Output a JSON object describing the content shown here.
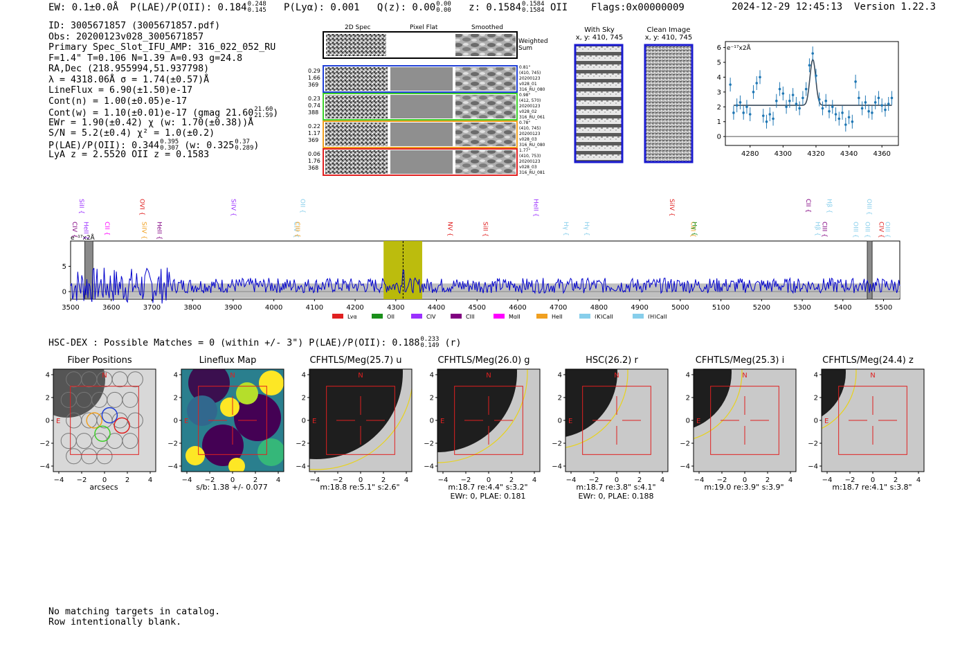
{
  "header": {
    "ew_text": "EW: 0.1±0.0Å",
    "plae_label": "P(LAE)/P(OII): 0.184",
    "plae_hi": "0.248",
    "plae_lo": "0.145",
    "plya": "P(Lyα): 0.001",
    "qz_label": "Q(z): 0.00",
    "qz_hi": "0.00",
    "qz_lo": "0.00",
    "z_label": "z: 0.1584",
    "z_hi": "0.1584",
    "z_lo": "0.1584",
    "z_line": "OII",
    "flags": "Flags:0x00000009",
    "datetime": "2024-12-29 12:45:13",
    "version": "Version 1.22.3"
  },
  "info": {
    "id": "ID: 3005671857 (3005671857.pdf)",
    "obs": "Obs: 20200123v028_3005671857",
    "primary": "Primary Spec_Slot_IFU_AMP: 316_022_052_RU",
    "fit": "F=1.4\"  T=0.106  N=1.39  A=0.93  g=24.8",
    "radec": "RA,Dec (218.955994,51.937798)",
    "lambda": "λ = 4318.06Å   σ = 1.74(±0.57)Å",
    "lineflux": "LineFlux = 6.90(±1.50)e-17",
    "cont_n": "Cont(n) = 1.00(±0.05)e-17",
    "cont_w": "Cont(w) = 1.10(±0.01)e-17 (gmag 21.60",
    "cont_w_hi": "21.60",
    "cont_w_lo": "21.59",
    "cont_w_end": ")",
    "ewr": "EWr = 1.90(±0.42)  χ (w: 1.70(±0.38))Å",
    "sn": "S/N = 5.2(±0.4)  χ² = 1.0(±0.2)",
    "plae2": "P(LAE)/P(OII): 0.344",
    "plae2_hi": "0.395",
    "plae2_lo": "0.307",
    "plae2_w": "(w: 0.325",
    "plae2_w_hi": "0.37",
    "plae2_w_lo": "0.289",
    "plae2_end": ")",
    "lya_z": "LyA z = 2.5520   OII z = 0.1583"
  },
  "spec2d": {
    "col_headers": [
      "2D Spec",
      "Pixel Flat",
      "Smoothed"
    ],
    "weighted_sum": "Weighted Sum",
    "rows": [
      {
        "left": [
          "0.29",
          "1.66",
          "369"
        ],
        "right": [
          "0.81\"",
          "(410, 745)",
          "20200123",
          "v028_01",
          "316_RU_080"
        ],
        "color": "#1f3fd6"
      },
      {
        "left": [
          "0.23",
          "0.74",
          "388"
        ],
        "right": [
          "0.98\"",
          "(412, 570)",
          "20200123",
          "v028_02",
          "316_RU_061"
        ],
        "color": "#3ecf2a"
      },
      {
        "left": [
          "0.22",
          "1.17",
          "369"
        ],
        "right": [
          "0.78\"",
          "(410, 745)",
          "20200123",
          "v028_03",
          "316_RU_080"
        ],
        "color": "#f0a020"
      },
      {
        "left": [
          "0.06",
          "1.76",
          "368"
        ],
        "right": [
          "1.77\"",
          "(410, 753)",
          "20200123",
          "v028_03",
          "316_RU_081"
        ],
        "color": "#e02020"
      }
    ]
  },
  "cutouts": {
    "with_sky_title": "With Sky",
    "with_sky_xy": "x, y: 410, 745",
    "clean_title": "Clean Image",
    "clean_xy": "x, y: 410, 745"
  },
  "chart_data": [
    {
      "type": "scatter",
      "title": "Line fit zoom",
      "ylabel_text": "e⁻¹⁷x2Å",
      "xlim": [
        4265,
        4370
      ],
      "ylim": [
        -0.6,
        6.4
      ],
      "xticks": [
        4280,
        4300,
        4320,
        4340,
        4360
      ],
      "yticks": [
        0,
        1,
        2,
        3,
        4,
        5,
        6
      ],
      "points": [
        [
          4268,
          3.5
        ],
        [
          4270,
          1.6
        ],
        [
          4272,
          2.1
        ],
        [
          4274,
          2.3
        ],
        [
          4276,
          1.6
        ],
        [
          4278,
          2.0
        ],
        [
          4280,
          1.5
        ],
        [
          4282,
          3.0
        ],
        [
          4284,
          3.6
        ],
        [
          4286,
          4.0
        ],
        [
          4288,
          1.4
        ],
        [
          4290,
          1.0
        ],
        [
          4292,
          1.5
        ],
        [
          4294,
          1.2
        ],
        [
          4296,
          2.4
        ],
        [
          4298,
          3.2
        ],
        [
          4300,
          2.9
        ],
        [
          4302,
          2.0
        ],
        [
          4304,
          2.4
        ],
        [
          4306,
          2.8
        ],
        [
          4308,
          2.2
        ],
        [
          4310,
          1.9
        ],
        [
          4312,
          2.6
        ],
        [
          4314,
          3.2
        ],
        [
          4316,
          4.8
        ],
        [
          4318,
          5.6
        ],
        [
          4320,
          4.1
        ],
        [
          4322,
          2.5
        ],
        [
          4324,
          1.9
        ],
        [
          4326,
          2.4
        ],
        [
          4328,
          1.7
        ],
        [
          4330,
          2.0
        ],
        [
          4332,
          1.5
        ],
        [
          4334,
          1.2
        ],
        [
          4336,
          1.6
        ],
        [
          4338,
          0.8
        ],
        [
          4340,
          1.3
        ],
        [
          4342,
          1.0
        ],
        [
          4344,
          3.7
        ],
        [
          4346,
          2.6
        ],
        [
          4348,
          1.9
        ],
        [
          4350,
          2.3
        ],
        [
          4352,
          1.7
        ],
        [
          4354,
          1.6
        ],
        [
          4356,
          2.3
        ],
        [
          4358,
          2.6
        ],
        [
          4360,
          2.1
        ],
        [
          4362,
          1.8
        ],
        [
          4364,
          2.2
        ],
        [
          4366,
          2.6
        ]
      ],
      "fit_continuum": 2.1,
      "fit_peak": 5.2,
      "fit_center": 4318.06,
      "fit_sigma": 1.74
    },
    {
      "type": "line",
      "title": "Full spectrum",
      "ylabel_text": "e⁻¹⁷x2Å",
      "xlim": [
        3500,
        5540
      ],
      "ylim": [
        -1.5,
        10
      ],
      "xticks": [
        3500,
        3600,
        3700,
        3800,
        3900,
        4000,
        4100,
        4200,
        4300,
        4400,
        4500,
        4600,
        4700,
        4800,
        4900,
        5000,
        5100,
        5200,
        5300,
        5400,
        5500
      ],
      "yticks": [
        0,
        5
      ],
      "highlight_x": [
        4270,
        4365
      ],
      "center_x": 4318,
      "bad_regions": [
        [
          3535,
          3555
        ],
        [
          5460,
          5472
        ]
      ],
      "line_markers": [
        {
          "x": 3505,
          "label": "CIV",
          "color": "#800080"
        },
        {
          "x": 3522,
          "label": "SiII",
          "color": "#9b30ff"
        },
        {
          "x": 3533,
          "label": "HeII",
          "color": "#9b30ff"
        },
        {
          "x": 3585,
          "label": "CII",
          "color": "#ff00ff"
        },
        {
          "x": 3671,
          "label": "OVI",
          "color": "#e02020"
        },
        {
          "x": 3676,
          "label": "SiIV",
          "color": "#f0a020"
        },
        {
          "x": 3714,
          "label": "HeII",
          "color": "#800080"
        },
        {
          "x": 3896,
          "label": "SiIV",
          "color": "#9b30ff"
        },
        {
          "x": 4050,
          "label": "CIV",
          "color": "#87ceeb"
        },
        {
          "x": 4053,
          "label": "CIII",
          "color": "#f0a020"
        },
        {
          "x": 4066,
          "label": "OII",
          "color": "#87ceeb"
        },
        {
          "x": 4429,
          "label": "NV",
          "color": "#e02020"
        },
        {
          "x": 4516,
          "label": "SiII",
          "color": "#e02020"
        },
        {
          "x": 4640,
          "label": "HeII",
          "color": "#9b30ff"
        },
        {
          "x": 4714,
          "label": "Hγ",
          "color": "#87ceeb"
        },
        {
          "x": 4765,
          "label": "Hγ",
          "color": "#87ceeb"
        },
        {
          "x": 4975,
          "label": "SiIV",
          "color": "#e02020"
        },
        {
          "x": 5027,
          "label": "CIII",
          "color": "#f0a020"
        },
        {
          "x": 5030,
          "label": "Hγ",
          "color": "#1a8f1a"
        },
        {
          "x": 5310,
          "label": "CII",
          "color": "#800080"
        },
        {
          "x": 5333,
          "label": "Hβ",
          "color": "#87ceeb"
        },
        {
          "x": 5350,
          "label": "CIII",
          "color": "#800080"
        },
        {
          "x": 5362,
          "label": "Hβ",
          "color": "#87ceeb"
        },
        {
          "x": 5427,
          "label": "OIII",
          "color": "#87ceeb"
        },
        {
          "x": 5456,
          "label": "OIII",
          "color": "#87ceeb"
        },
        {
          "x": 5460,
          "label": "OIII",
          "color": "#87ceeb"
        },
        {
          "x": 5490,
          "label": "CIV",
          "color": "#e02020"
        },
        {
          "x": 5505,
          "label": "OIII",
          "color": "#87ceeb"
        }
      ],
      "legend": [
        {
          "label": "Lyα",
          "color": "#e02020"
        },
        {
          "label": "OII",
          "color": "#1a8f1a"
        },
        {
          "label": "CIV",
          "color": "#9b30ff"
        },
        {
          "label": "CIII",
          "color": "#800080"
        },
        {
          "label": "MgII",
          "color": "#ff00ff"
        },
        {
          "label": "HeII",
          "color": "#f0a020"
        },
        {
          "label": "(K)CaII",
          "color": "#87ceeb"
        },
        {
          "label": "(H)CaII",
          "color": "#87ceeb"
        }
      ]
    }
  ],
  "hsc": {
    "summary": "HSC-DEX : Possible Matches = 0 (within +/- 3\")  P(LAE)/P(OII): 0.188",
    "summary_hi": "0.233",
    "summary_lo": "0.149",
    "summary_end": "(r)"
  },
  "panels": [
    {
      "title": "Fiber Positions",
      "caption1": "arcsecs",
      "caption2": "",
      "kind": "fiber"
    },
    {
      "title": "Lineflux Map",
      "caption1": "s/b: 1.38 +/- 0.077",
      "caption2": "",
      "kind": "lineflux"
    },
    {
      "title": "CFHTLS/Meg(25.7) u",
      "caption1": "m:18.8  re:5.1\"  s:2.6\"",
      "caption2": "",
      "kind": "image"
    },
    {
      "title": "CFHTLS/Meg(26.0) g",
      "caption1": "m:18.7  re:4.4\"  s:3.2\"",
      "caption2": "EWr: 0, PLAE: 0.181",
      "kind": "image"
    },
    {
      "title": "HSC(26.2) r",
      "caption1": "m:18.7  re:3.8\"  s:4.1\"",
      "caption2": "EWr: 0, PLAE: 0.188",
      "kind": "image"
    },
    {
      "title": "CFHTLS/Meg(25.3) i",
      "caption1": "m:19.0  re:3.9\"  s:3.9\"",
      "caption2": "",
      "kind": "image"
    },
    {
      "title": "CFHTLS/Meg(24.4) z",
      "caption1": "m:18.7  re:4.1\"  s:3.8\"",
      "caption2": "",
      "kind": "image"
    }
  ],
  "axis_labels": {
    "n": "N",
    "e": "E",
    "ticks": [
      "−4",
      "−2",
      "0",
      "2",
      "4"
    ]
  },
  "footer": {
    "line1": "No matching targets in catalog.",
    "line2": "Row intentionally blank."
  }
}
